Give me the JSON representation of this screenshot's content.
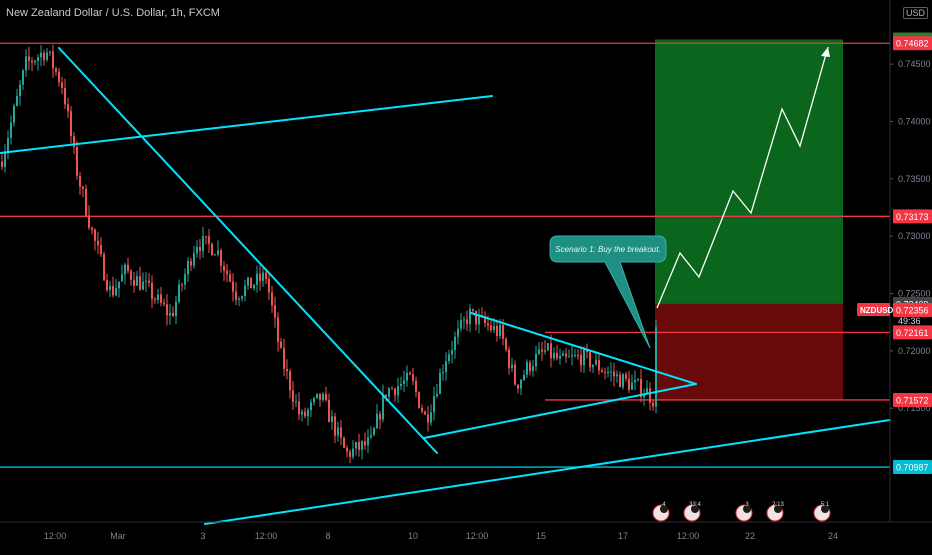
{
  "chart_data": {
    "type": "candlestick",
    "title": "New Zealand Dollar / U.S. Dollar, 1h, FXCM",
    "symbol": "NZDUSD",
    "currency": "USD",
    "ylim": [
      0.7075,
      0.7495
    ],
    "y_ticks": [
      0.745,
      0.74,
      0.735,
      0.73,
      0.725,
      0.72,
      0.715
    ],
    "y_tick_labels": [
      "0.74500",
      "0.74000",
      "0.73500",
      "0.73000",
      "0.72500",
      "0.72000",
      "0.71500"
    ],
    "top_label": "0.74715",
    "x_tick_labels": [
      "12:00",
      "Mar",
      "3",
      "12:00",
      "8",
      "10",
      "12:00",
      "15",
      "17",
      "12:00",
      "22",
      "24"
    ],
    "horizontal_levels": [
      {
        "value": 0.74682,
        "label": "0.74682",
        "color": "#f23645"
      },
      {
        "value": 0.73173,
        "label": "0.73173",
        "color": "#f23645"
      },
      {
        "value": 0.72161,
        "label": "0.72161",
        "color": "#f23645"
      },
      {
        "value": 0.71572,
        "label": "0.71572",
        "color": "#f23645"
      },
      {
        "value": 0.70987,
        "label": "0.70987",
        "color": "#00bcd4"
      }
    ],
    "price_marks": [
      {
        "value": 0.72409,
        "label": "0.72409"
      },
      {
        "value": 0.72356,
        "label": "0.72356",
        "symbol": "NZDUSD",
        "countdown": "49:36"
      }
    ],
    "trade_plan": {
      "entry": 0.72409,
      "target": 0.74715,
      "stop": 0.71572
    },
    "annotation": "Scenario 1: Buy the breakout.",
    "event_markers": [
      {
        "label": "4"
      },
      {
        "label": "33:4"
      },
      {
        "label": "3"
      },
      {
        "label": "2:13"
      },
      {
        "label": "5:1"
      }
    ],
    "colors": {
      "up": "#26a69a",
      "down": "#ef5350",
      "trendline": "#00e5ff",
      "level": "#f23645",
      "profit_zone": "#0b6b1e",
      "loss_zone": "#6e0b0b",
      "callout": "#1f8f83",
      "projection": "#ffffff"
    }
  }
}
